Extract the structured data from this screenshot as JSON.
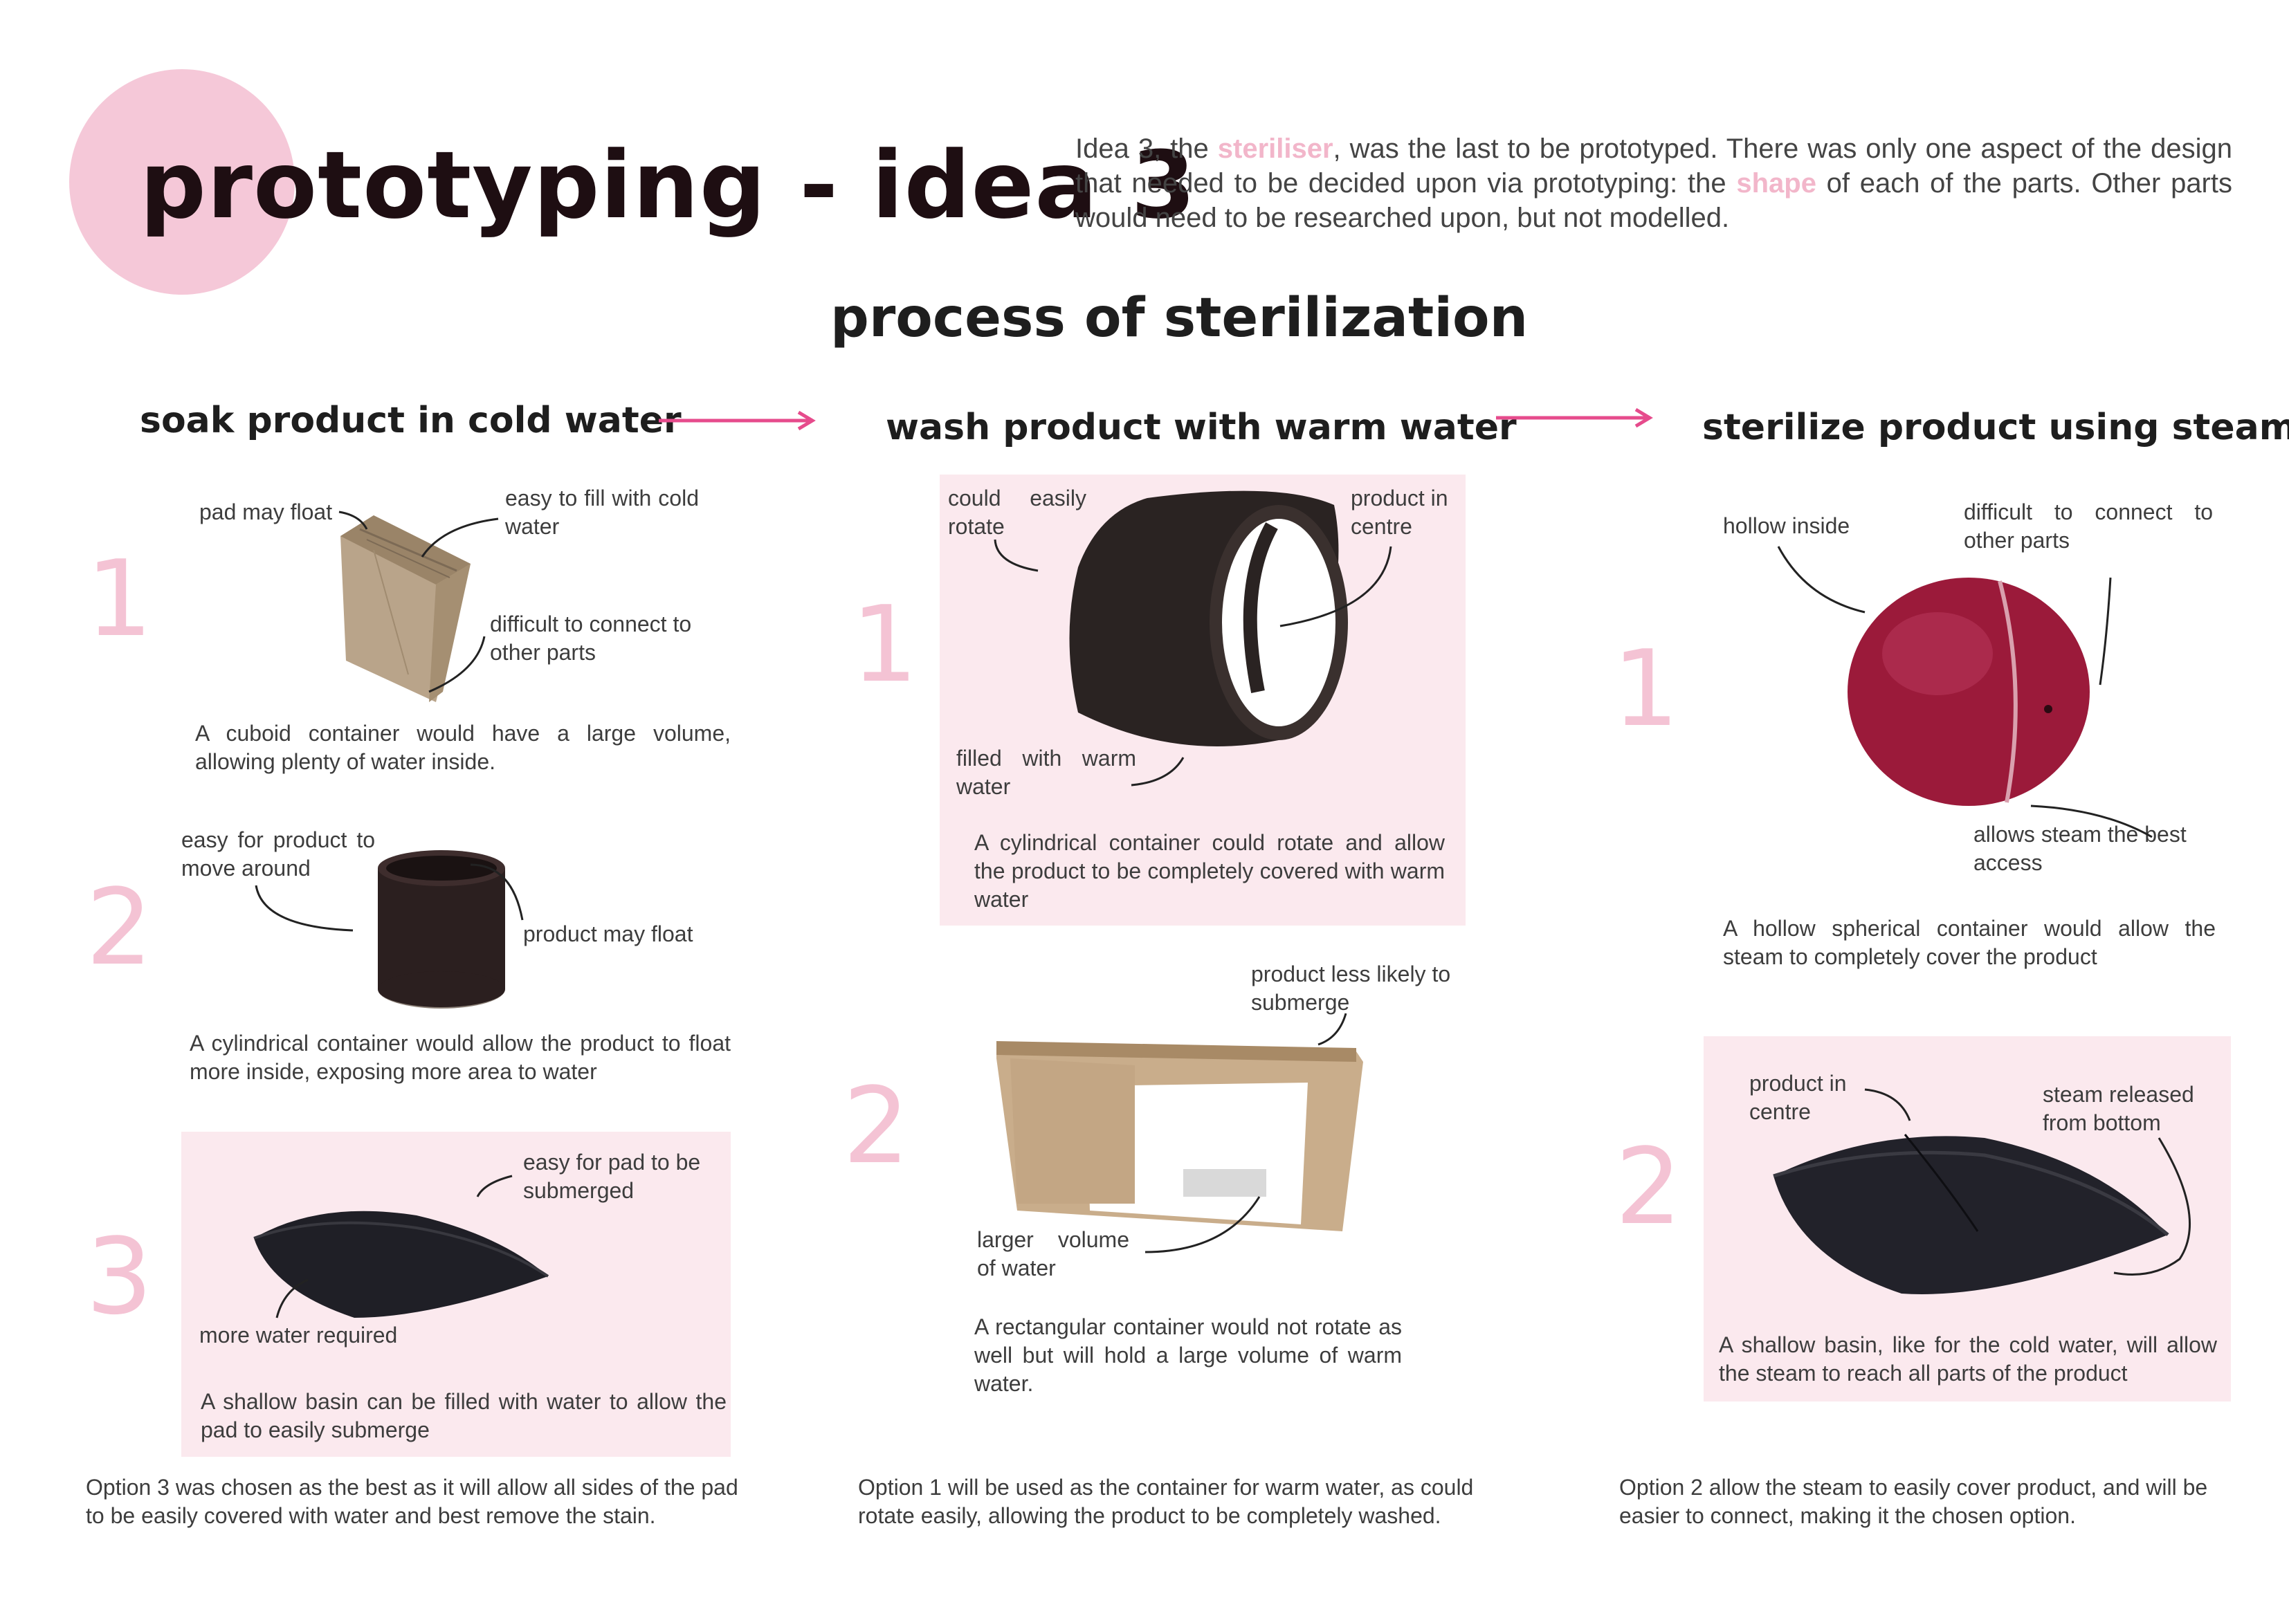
{
  "header": {
    "title": "prototyping - idea 3",
    "intro_1": "Idea 3, the ",
    "intro_hl1": "steriliser",
    "intro_2": ", was the last to be prototyped. There was only one aspect of the design that needed to be decided upon via prototyping: the ",
    "intro_hl2": "shape",
    "intro_3": " of each of the parts. Other parts would need to be researched upon, but not modelled."
  },
  "process_title": "process of sterilization",
  "columns": [
    {
      "heading": "soak product in cold water",
      "options": [
        {
          "number": "1",
          "labels": [
            "pad may float",
            "easy to fill with cold water",
            "difficult to connect to other parts"
          ],
          "description": "A cuboid container would have a large volume, allowing plenty of water inside."
        },
        {
          "number": "2",
          "labels": [
            "easy for product to move around",
            "product may float"
          ],
          "description": "A cylindrical container would allow the product to float more inside, exposing more area to water"
        },
        {
          "number": "3",
          "labels": [
            "easy for pad to be submerged",
            "more water required"
          ],
          "description": "A shallow basin can be filled with water to allow the pad to easily submerge"
        }
      ],
      "conclusion": "Option 3 was chosen as the best as it will allow all sides of the pad to be easily covered with water and best remove the stain."
    },
    {
      "heading": "wash product with warm water",
      "options": [
        {
          "number": "1",
          "labels": [
            "could easily rotate",
            "product in centre",
            "filled with warm water"
          ],
          "description": "A cylindrical container could rotate and allow the product to be completely covered with warm water"
        },
        {
          "number": "2",
          "labels": [
            "product less likely to submerge",
            "larger volume of water"
          ],
          "description": "A rectangular container would not rotate as well but will hold a large volume of warm water."
        }
      ],
      "conclusion": "Option 1 will be used as the container for warm water, as could rotate easily, allowing the product to be completely washed."
    },
    {
      "heading": "sterilize product using steam",
      "options": [
        {
          "number": "1",
          "labels": [
            "hollow inside",
            "difficult to connect to other parts",
            "allows steam the best access"
          ],
          "description": "A hollow spherical container would allow the steam to completely cover the product"
        },
        {
          "number": "2",
          "labels": [
            "product in centre",
            "steam released from bottom"
          ],
          "description": "A shallow basin, like for the cold water, will allow the steam to reach all parts of the product"
        }
      ],
      "conclusion": "Option 2 allow the steam to easily cover product, and will be easier to connect, making it the chosen option."
    }
  ],
  "colors": {
    "accent_pink": "#f5c8d8",
    "box_pink": "#fbe9ee",
    "arrow_pink": "#e64b8c",
    "number_pink": "#f4c3d4"
  }
}
